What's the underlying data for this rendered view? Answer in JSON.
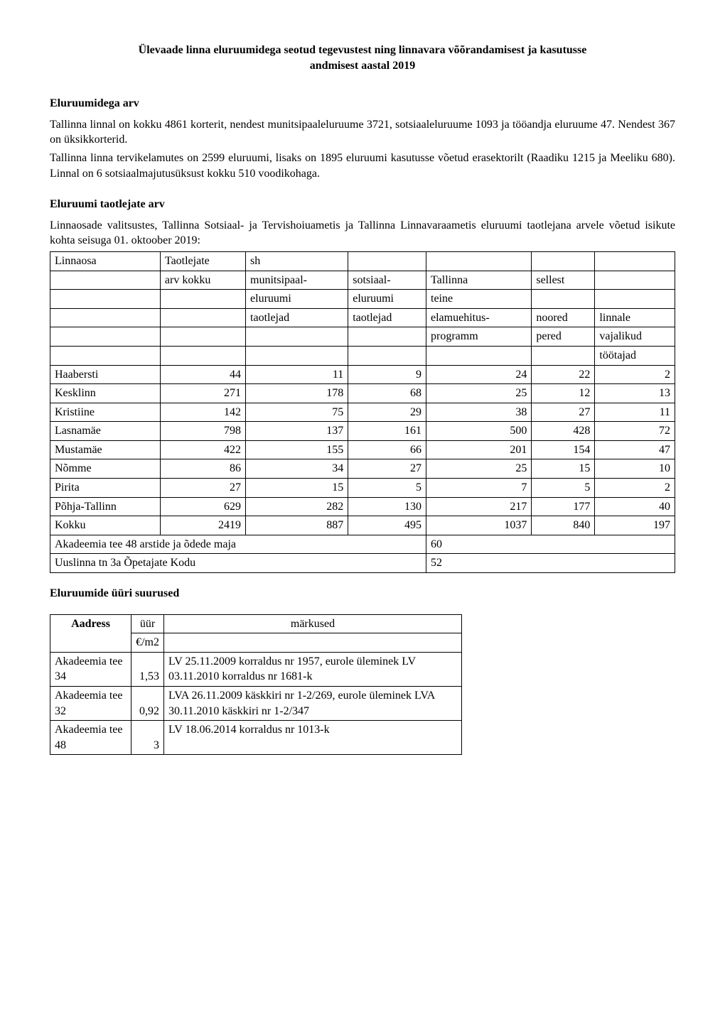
{
  "document": {
    "title_line1": "Ülevaade linna eluruumidega seotud tegevustest ning linnavara võõrandamisest ja kasutusse",
    "title_line2": "andmisest aastal 2019"
  },
  "section1": {
    "heading": "Eluruumidega arv",
    "p1": "Tallinna linnal on kokku 4861 korterit, nendest munitsipaaleluruume 3721, sotsiaaleluruume 1093 ja tööandja eluruume 47. Nendest 367 on üksikkorterid.",
    "p2": "Tallinna linna tervikelamutes on 2599 eluruumi, lisaks on 1895 eluruumi kasutusse võetud erasektorilt (Raadiku 1215 ja Meeliku 680). Linnal on 6 sotsiaalmajutusüksust kokku 510 voodikohaga."
  },
  "section2": {
    "heading": "Eluruumi taotlejate arv",
    "intro": "Linnaosade valitsustes, Tallinna Sotsiaal- ja Tervishoiuametis  ja Tallinna Linnavaraametis eluruumi taotlejana arvele võetud isikute kohta seisuga  01. oktoober  2019:",
    "table": {
      "header": {
        "c1": "Linnaosa",
        "c2": "Taotlejate",
        "c2b": "arv kokku",
        "c3": "sh",
        "c3b": "munitsipaal-",
        "c3c": "eluruumi",
        "c3d": "taotlejad",
        "c4b": "sotsiaal-",
        "c4c": "eluruumi",
        "c4d": "taotlejad",
        "c5b": "Tallinna",
        "c5c": "teine",
        "c5d": "elamuehitus-",
        "c5e": "programm",
        "c6b": "sellest",
        "c6d": "noored",
        "c6e": "pered",
        "c7d": "linnale",
        "c7e": "vajalikud",
        "c7f": "töötajad"
      },
      "rows": [
        {
          "d": "Haabersti",
          "a": "44",
          "m": "11",
          "s": "9",
          "t": "24",
          "n": "22",
          "l": "2"
        },
        {
          "d": "Kesklinn",
          "a": "271",
          "m": "178",
          "s": "68",
          "t": "25",
          "n": "12",
          "l": "13"
        },
        {
          "d": "Kristiine",
          "a": "142",
          "m": "75",
          "s": "29",
          "t": "38",
          "n": "27",
          "l": "11"
        },
        {
          "d": "Lasnamäe",
          "a": "798",
          "m": "137",
          "s": "161",
          "t": "500",
          "n": "428",
          "l": "72"
        },
        {
          "d": "Mustamäe",
          "a": "422",
          "m": "155",
          "s": "66",
          "t": "201",
          "n": "154",
          "l": "47"
        },
        {
          "d": "Nõmme",
          "a": "86",
          "m": "34",
          "s": "27",
          "t": "25",
          "n": "15",
          "l": "10"
        },
        {
          "d": "Pirita",
          "a": "27",
          "m": "15",
          "s": "5",
          "t": "7",
          "n": "5",
          "l": "2"
        },
        {
          "d": "Põhja-Tallinn",
          "a": "629",
          "m": "282",
          "s": "130",
          "t": "217",
          "n": "177",
          "l": "40"
        },
        {
          "d": "Kokku",
          "a": "2419",
          "m": "887",
          "s": "495",
          "t": "1037",
          "n": "840",
          "l": "197"
        }
      ],
      "footer": [
        {
          "label": "Akadeemia tee 48 arstide ja õdede maja",
          "value": "60"
        },
        {
          "label": "Uuslinna tn 3a Õpetajate Kodu",
          "value": "52"
        }
      ]
    }
  },
  "section3": {
    "heading": "Eluruumide üüri suurused",
    "table": {
      "header": {
        "c1": "Aadress",
        "c2": "üür",
        "c2b": "€/m2",
        "c3": "märkused"
      },
      "rows": [
        {
          "a": "Akadeemia tee 34",
          "u": "1,53",
          "m": "LV 25.11.2009 korraldus nr 1957, eurole üleminek LV 03.11.2010 korraldus nr 1681-k"
        },
        {
          "a": "Akadeemia tee 32",
          "u": "0,92",
          "m": "LVA 26.11.2009 käskkiri nr 1-2/269, eurole üleminek LVA 30.11.2010 käskkiri nr 1-2/347"
        },
        {
          "a": "Akadeemia tee 48",
          "u": "3",
          "m": "LV 18.06.2014 korraldus nr 1013-k"
        }
      ]
    }
  }
}
